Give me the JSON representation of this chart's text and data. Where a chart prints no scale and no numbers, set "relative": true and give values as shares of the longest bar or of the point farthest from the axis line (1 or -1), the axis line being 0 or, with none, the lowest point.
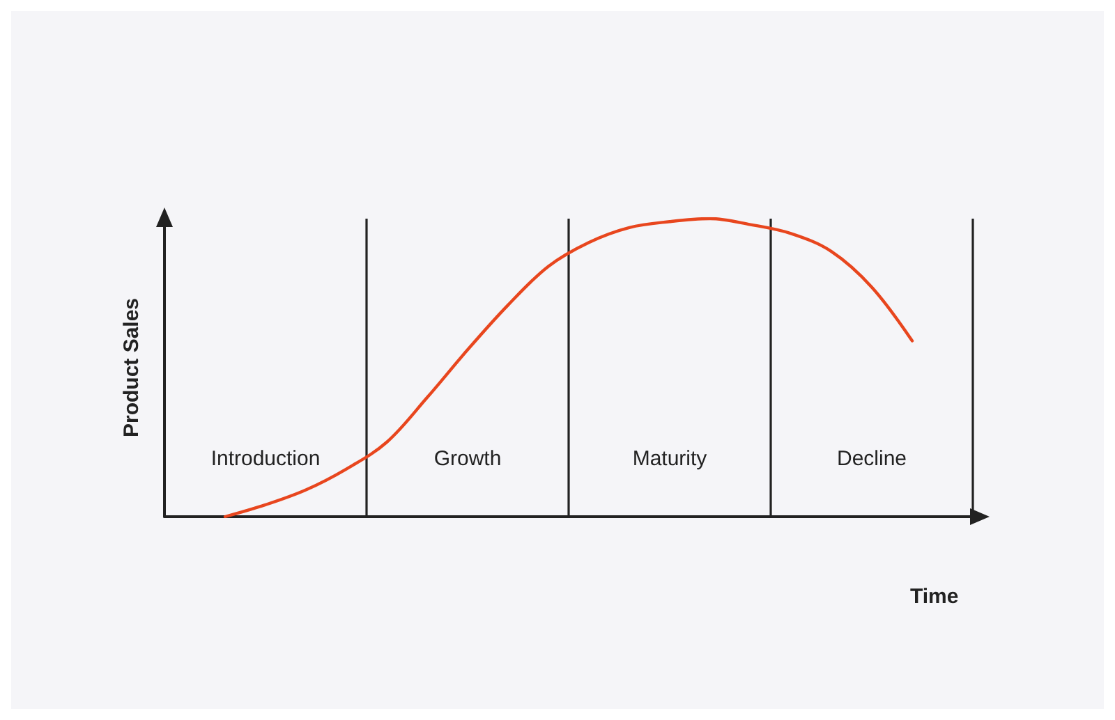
{
  "chart_data": {
    "type": "line",
    "xlabel": "Time",
    "ylabel": "Product Sales",
    "relative": true,
    "tick_labels": "x",
    "grid": "x",
    "marker": "none",
    "line_style": "solid",
    "categories": [
      null,
      null,
      "Introduction",
      null,
      null,
      null,
      null,
      "Growth",
      null,
      null,
      null,
      null,
      "Maturity",
      null,
      null,
      null,
      null,
      "Decline",
      null,
      null
    ],
    "series": [
      {
        "color": "#e8461e",
        "values": [
          null,
          0,
          0.04,
          0.09,
          0.16,
          0.25,
          0.4,
          0.56,
          0.71,
          0.84,
          0.92,
          0.97,
          0.99,
          1.0,
          0.98,
          0.95,
          0.89,
          0.77,
          0.59,
          null
        ]
      }
    ]
  }
}
